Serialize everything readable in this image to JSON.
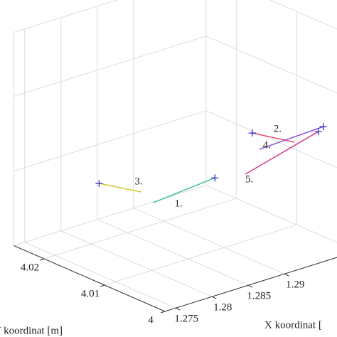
{
  "chart_data": {
    "type": "line3d",
    "x_label": "X koordinat [",
    "y_label": "Y koordinat [m]",
    "xlim": [
      1.2735,
      1.3
    ],
    "xticks": [
      1.275,
      1.28,
      1.285,
      1.29
    ],
    "ylim": [
      4,
      4.025
    ],
    "yticks": [
      4,
      4.01,
      4.02
    ],
    "zlim": [
      0,
      1
    ],
    "grid": true,
    "series": [
      {
        "name": "1.",
        "color": "#3cc0a0",
        "x": [
          1.2808,
          1.2903
        ],
        "y": [
          4.0107,
          4.0119
        ],
        "z": [
          0.3,
          0.3
        ]
      },
      {
        "name": "2.",
        "color": "#e0506a",
        "x": [
          1.2937,
          1.2954
        ],
        "y": [
          4.0098,
          4.00485
        ],
        "z": [
          0.5,
          0.5
        ]
      },
      {
        "name": "3.",
        "color": "#d8c830",
        "x": [
          1.28,
          1.2818
        ],
        "y": [
          4.0187,
          4.0139
        ],
        "z": [
          0.3,
          0.3
        ]
      },
      {
        "name": "4.",
        "color": "#8a50d0",
        "x": [
          1.2986,
          1.2893
        ],
        "y": [
          4.00393,
          4.00335
        ],
        "z": [
          0.55,
          0.55
        ]
      },
      {
        "name": "5.",
        "color": "#d83a8a",
        "x": [
          1.2895,
          1.2973
        ],
        "y": [
          4.0059,
          4.00318
        ],
        "z": [
          0.4,
          0.55
        ]
      }
    ]
  }
}
